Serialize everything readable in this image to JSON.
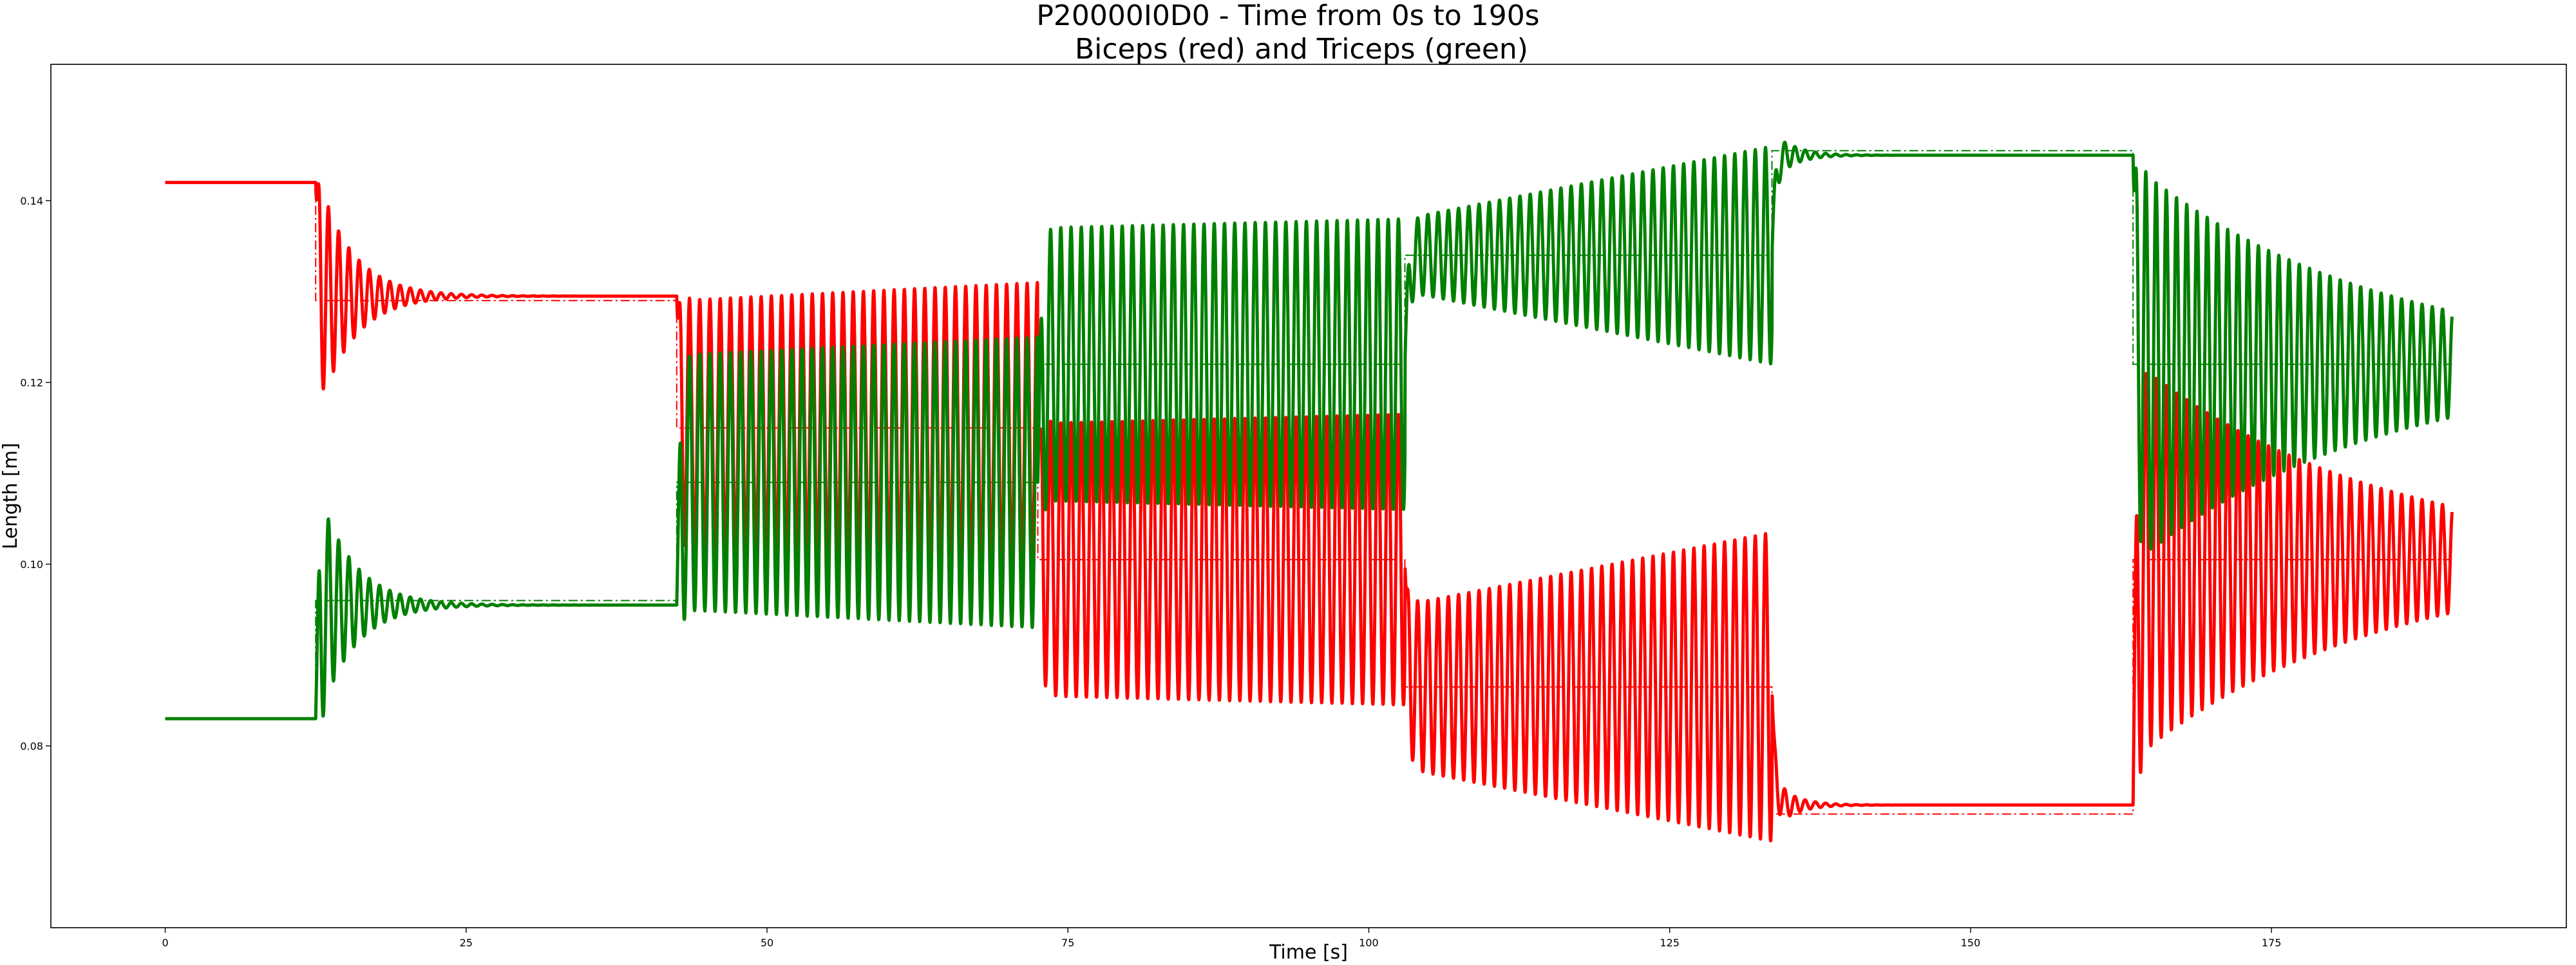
{
  "chart_data": {
    "type": "line",
    "title": "P20000I0D0 - Time from 0s to 190s",
    "subtitle": "   Biceps (red) and Triceps (green)",
    "xlabel": "Time [s]",
    "ylabel": "Length [m]",
    "xlim": [
      -9.5,
      199.5
    ],
    "ylim": [
      0.06,
      0.155
    ],
    "grid": false,
    "xticks": [
      0,
      25,
      50,
      75,
      100,
      125,
      150,
      175
    ],
    "xtick_labels": [
      "0",
      "25",
      "50",
      "75",
      "100",
      "125",
      "150",
      "175"
    ],
    "yticks": [
      0.08,
      0.1,
      0.12,
      0.14
    ],
    "ytick_labels": [
      "0.08",
      "0.10",
      "0.12",
      "0.14"
    ],
    "colors": {
      "biceps": "#ff0000",
      "triceps": "#008000"
    },
    "series": [
      {
        "label": "Biceps",
        "color": "#ff0000",
        "style": "solid",
        "phases": [
          {
            "t0": 0,
            "t1": 12.5,
            "pre": 0.142,
            "base": 0.142,
            "amp0": 0,
            "amp1": 0,
            "decay": 0
          },
          {
            "t0": 12.5,
            "t1": 42.5,
            "pre": 0.142,
            "base": 0.1295,
            "amp0": 0.014,
            "amp1": 0,
            "decay": 0.35
          },
          {
            "t0": 42.5,
            "t1": 72.5,
            "pre": 0.1295,
            "base": 0.115,
            "amp0": 0.014,
            "amp1": 0.016,
            "decay": 0
          },
          {
            "t0": 72.5,
            "t1": 103.0,
            "pre": 0.115,
            "base": 0.1005,
            "amp0": 0.015,
            "amp1": 0.016,
            "decay": 0
          },
          {
            "t0": 103.0,
            "t1": 133.5,
            "pre": 0.1005,
            "base": 0.0865,
            "amp0": 0.009,
            "amp1": 0.017,
            "decay": 0
          },
          {
            "t0": 133.5,
            "t1": 163.5,
            "pre": 0.0865,
            "base": 0.0735,
            "amp0": 0.003,
            "amp1": 0,
            "decay": 0.6
          },
          {
            "t0": 163.5,
            "t1": 190,
            "pre": 0.0735,
            "base": 0.1005,
            "amp0": 0.022,
            "amp1": 0.012,
            "decay": 0.05
          }
        ],
        "reference": [
          {
            "t0": 0,
            "t1": 12.5,
            "y": 0.142
          },
          {
            "t0": 12.5,
            "t1": 42.5,
            "y": 0.129
          },
          {
            "t0": 42.5,
            "t1": 72.5,
            "y": 0.115
          },
          {
            "t0": 72.5,
            "t1": 103.0,
            "y": 0.1005
          },
          {
            "t0": 103.0,
            "t1": 133.5,
            "y": 0.0865
          },
          {
            "t0": 133.5,
            "t1": 163.5,
            "y": 0.0725
          },
          {
            "t0": 163.5,
            "t1": 190,
            "y": 0.1005
          }
        ]
      },
      {
        "label": "Triceps",
        "color": "#008000",
        "style": "solid",
        "phases": [
          {
            "t0": 0,
            "t1": 12.5,
            "pre": 0.083,
            "base": 0.083,
            "amp0": 0,
            "amp1": 0,
            "decay": 0
          },
          {
            "t0": 12.5,
            "t1": 42.5,
            "pre": 0.083,
            "base": 0.0955,
            "amp0": 0.014,
            "amp1": 0,
            "decay": 0.35
          },
          {
            "t0": 42.5,
            "t1": 72.5,
            "pre": 0.0955,
            "base": 0.109,
            "amp0": 0.014,
            "amp1": 0.016,
            "decay": 0
          },
          {
            "t0": 72.5,
            "t1": 103.0,
            "pre": 0.109,
            "base": 0.122,
            "amp0": 0.015,
            "amp1": 0.016,
            "decay": 0
          },
          {
            "t0": 103.0,
            "t1": 133.5,
            "pre": 0.122,
            "base": 0.134,
            "amp0": 0.004,
            "amp1": 0.012,
            "decay": 0
          },
          {
            "t0": 133.5,
            "t1": 163.5,
            "pre": 0.134,
            "base": 0.145,
            "amp0": 0.003,
            "amp1": 0,
            "decay": 0.6
          },
          {
            "t0": 163.5,
            "t1": 190,
            "pre": 0.145,
            "base": 0.122,
            "amp0": 0.022,
            "amp1": 0.01,
            "decay": 0.05
          }
        ],
        "reference": [
          {
            "t0": 0,
            "t1": 12.5,
            "y": 0.083
          },
          {
            "t0": 12.5,
            "t1": 42.5,
            "y": 0.096
          },
          {
            "t0": 42.5,
            "t1": 72.5,
            "y": 0.109
          },
          {
            "t0": 72.5,
            "t1": 103.0,
            "y": 0.122
          },
          {
            "t0": 103.0,
            "t1": 133.5,
            "y": 0.134
          },
          {
            "t0": 133.5,
            "t1": 163.5,
            "y": 0.1455
          },
          {
            "t0": 163.5,
            "t1": 190,
            "y": 0.122
          }
        ]
      }
    ],
    "oscillation_period_s": 0.85
  }
}
